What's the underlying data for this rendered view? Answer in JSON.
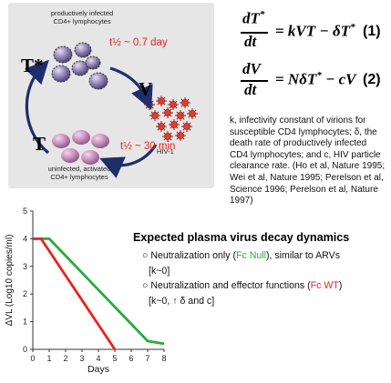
{
  "diagram": {
    "productive_cells_label": "productively infected\nCD4+ lymphocytes",
    "uninfected_cells_label": "uninfected, activated\nCD4+ lymphocytes",
    "virus_label": "HIV-1",
    "t_star_symbol": "T*",
    "t_symbol": "T",
    "v_symbol": "V",
    "half_life_infected": "t½ ~ 0.7 day",
    "half_life_virus": "t½ ~ 30 min"
  },
  "equations": {
    "eq1_num_var": "dT",
    "eq1_num_sup": "*",
    "eq1_den": "dt",
    "eq1_rhs_a": "= kVT − δT",
    "eq1_rhs_sup": "*",
    "eq1_number": "(1)",
    "eq2_num": "dV",
    "eq2_den": "dt",
    "eq2_rhs_a": "= NδT",
    "eq2_rhs_sup": "*",
    "eq2_rhs_b": " − cV",
    "eq2_number": "(2)"
  },
  "definitions": "k, infectivity constant of virions for susceptible CD4 lymphocytes; δ, the death rate of productively infected CD4 lymphocytes; and c, HIV particle clearance rate. (Ho et al, Nature 1995; Wei et al, Nature 1995; Perelson et al, Science 1996; Perelson et al, Nature 1997)",
  "section_title": "Expected plasma virus decay dynamics",
  "bullets": {
    "b1_prefix": "Neutralization only (",
    "b1_highlight": "Fc Null",
    "b1_suffix": "), similar to ARVs",
    "b1_note": "[k~0]",
    "b2_text": "Neutralization and effector functions (",
    "b2_highlight": "Fc WT",
    "b2_suffix": ")",
    "b2_note_a": "[k~0, ",
    "b2_arrow": "↑",
    "b2_note_b": " δ and c]"
  },
  "colors": {
    "fc_null": "#2aab3a",
    "fc_wt": "#e8231e",
    "panel_bg": "#e6e6e6",
    "cycle_arrows": "#1f2d6b"
  },
  "chart_data": {
    "type": "line",
    "xlabel": "Days",
    "ylabel": "ΔVL (Log10 copies/ml)",
    "xlim": [
      0,
      8
    ],
    "ylim": [
      0,
      5
    ],
    "xticks": [
      "0",
      "1",
      "2",
      "3",
      "4",
      "5",
      "6",
      "7",
      "8"
    ],
    "yticks": [
      "0",
      "1",
      "2",
      "3",
      "4",
      "5"
    ],
    "grid": false,
    "series": [
      {
        "color": "#2aab3a",
        "x": [
          0,
          1,
          7,
          8
        ],
        "y": [
          4,
          4,
          0.3,
          0.2
        ]
      },
      {
        "color": "#e8231e",
        "x": [
          0,
          0.5,
          5
        ],
        "y": [
          4,
          4,
          0
        ]
      }
    ]
  }
}
